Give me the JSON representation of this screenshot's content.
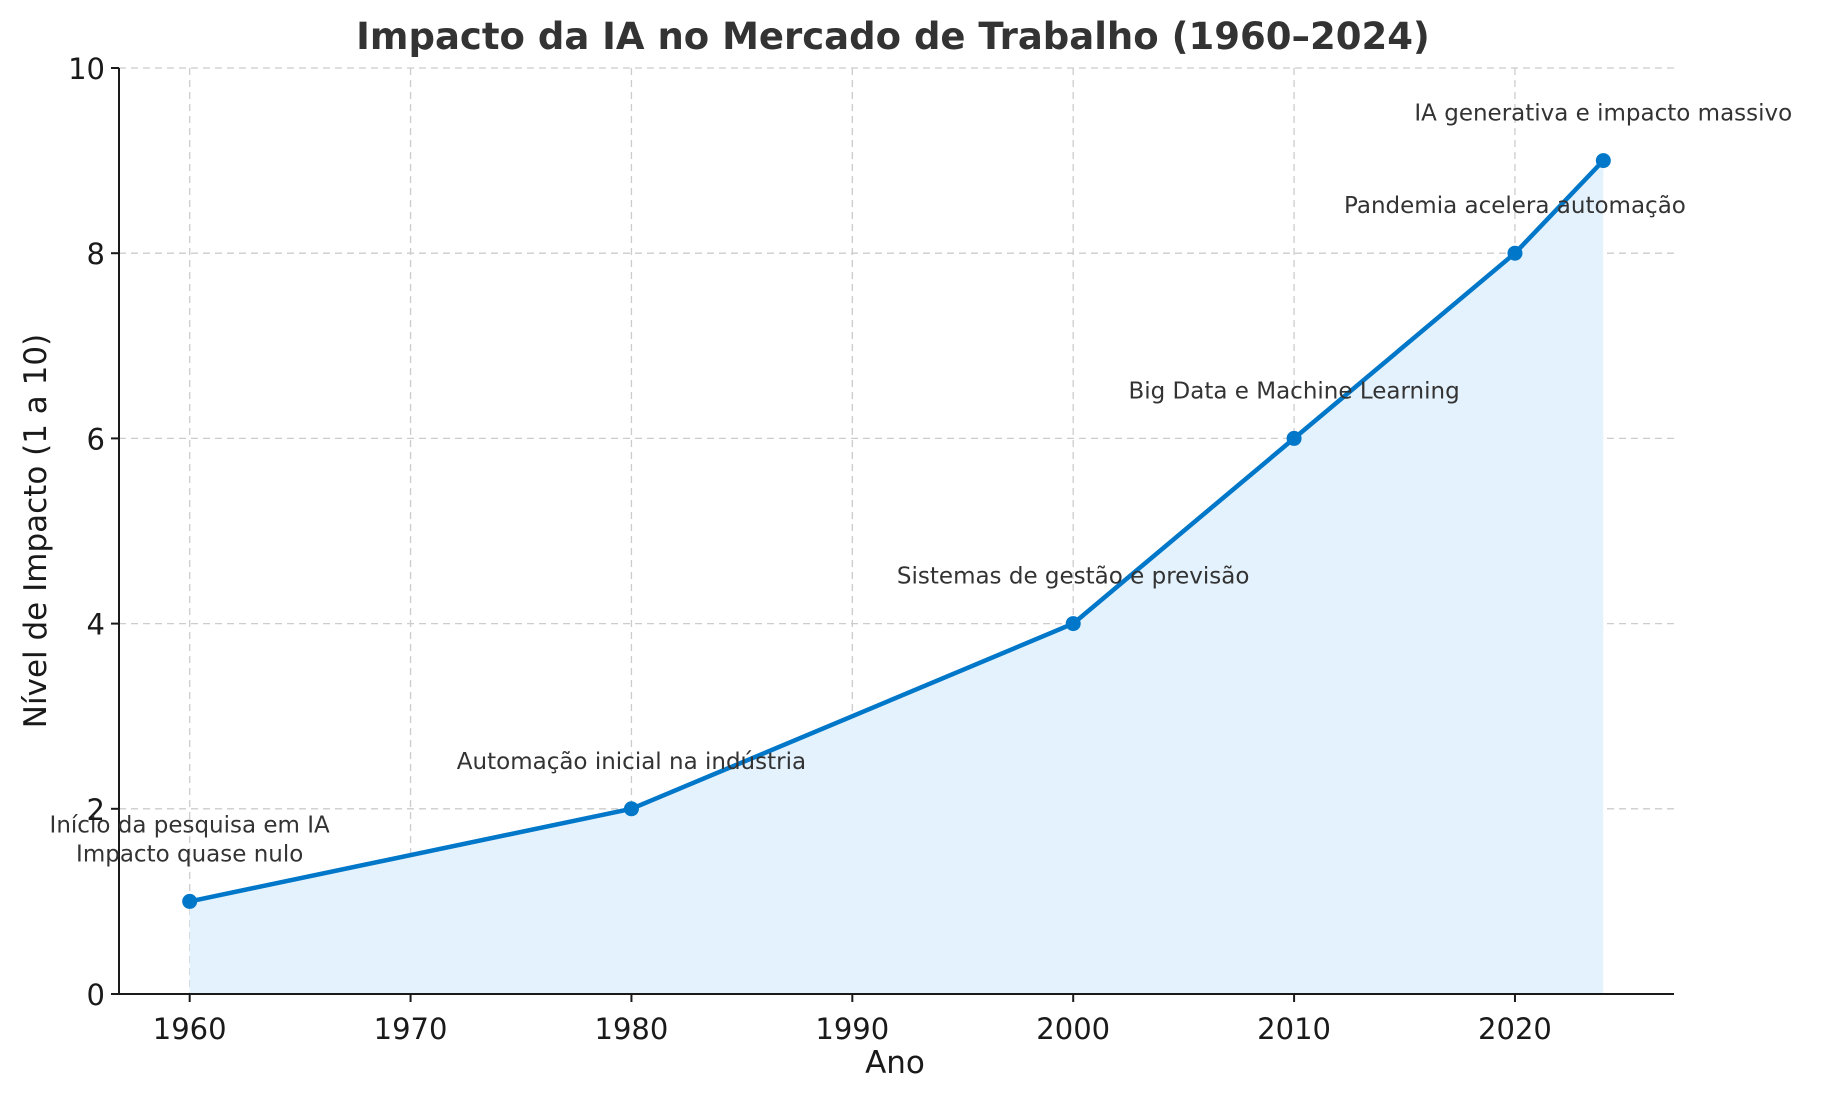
{
  "chart_data": {
    "type": "line",
    "title": "Impacto da IA no Mercado de Trabalho (1960–2024)",
    "xlabel": "Ano",
    "ylabel": "Nível de Impacto (1 a 10)",
    "xlim": [
      1956.8,
      2027.2
    ],
    "ylim": [
      0,
      10
    ],
    "xticks": [
      1960,
      1970,
      1980,
      1990,
      2000,
      2010,
      2020
    ],
    "yticks": [
      0,
      2,
      4,
      6,
      8,
      10
    ],
    "grid": true,
    "area_fill": true,
    "series": [
      {
        "x": [
          1960,
          1980,
          2000,
          2010,
          2020,
          2024
        ],
        "values": [
          1,
          2,
          4,
          6,
          8,
          9
        ],
        "color": "#0077c8",
        "fill_color": "#e3f2fd"
      }
    ],
    "annotations": [
      {
        "x": 1960,
        "y": 1,
        "lines": [
          "Início da pesquisa em IA",
          "Impacto quase nulo"
        ]
      },
      {
        "x": 1980,
        "y": 2,
        "lines": [
          "Automação inicial na indústria"
        ]
      },
      {
        "x": 2000,
        "y": 4,
        "lines": [
          "Sistemas de gestão e previsão"
        ]
      },
      {
        "x": 2010,
        "y": 6,
        "lines": [
          "Big Data e Machine Learning"
        ]
      },
      {
        "x": 2020,
        "y": 8,
        "lines": [
          "Pandemia acelera automação"
        ]
      },
      {
        "x": 2024,
        "y": 9,
        "lines": [
          "IA generativa e impacto massivo"
        ]
      }
    ]
  }
}
